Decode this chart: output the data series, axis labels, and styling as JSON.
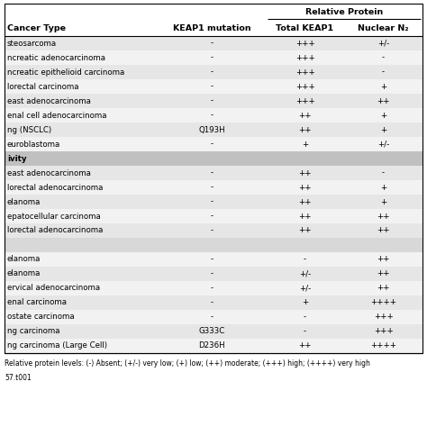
{
  "title_row1": "Relative Protein",
  "col_headers": [
    "Cancer Type",
    "KEAP1 mutation",
    "Total KEAP1",
    "Nuclear N₂"
  ],
  "rows": [
    {
      "label": "steosarcoma",
      "is_section": false,
      "is_blank": false,
      "keap1_mut": "-",
      "total_keap1": "+++",
      "nuclear_n": "+/-"
    },
    {
      "label": "ncreatic adenocarcinoma",
      "is_section": false,
      "is_blank": false,
      "keap1_mut": "-",
      "total_keap1": "+++",
      "nuclear_n": "-"
    },
    {
      "label": "ncreatic epithelioid carcinoma",
      "is_section": false,
      "is_blank": false,
      "keap1_mut": "-",
      "total_keap1": "+++",
      "nuclear_n": "-"
    },
    {
      "label": "lorectal carcinoma",
      "is_section": false,
      "is_blank": false,
      "keap1_mut": "-",
      "total_keap1": "+++",
      "nuclear_n": "+"
    },
    {
      "label": "east adenocarcinoma",
      "is_section": false,
      "is_blank": false,
      "keap1_mut": "-",
      "total_keap1": "+++",
      "nuclear_n": "++"
    },
    {
      "label": "enal cell adenocarcinoma",
      "is_section": false,
      "is_blank": false,
      "keap1_mut": "-",
      "total_keap1": "++",
      "nuclear_n": "+"
    },
    {
      "label": "ng (NSCLC)",
      "is_section": false,
      "is_blank": false,
      "keap1_mut": "Q193H",
      "total_keap1": "++",
      "nuclear_n": "+"
    },
    {
      "label": "euroblastoma",
      "is_section": false,
      "is_blank": false,
      "keap1_mut": "-",
      "total_keap1": "+",
      "nuclear_n": "+/-"
    },
    {
      "label": "ivity",
      "is_section": true,
      "is_blank": false,
      "keap1_mut": "",
      "total_keap1": "",
      "nuclear_n": ""
    },
    {
      "label": "east adenocarcinoma",
      "is_section": false,
      "is_blank": false,
      "keap1_mut": "-",
      "total_keap1": "++",
      "nuclear_n": "-"
    },
    {
      "label": "lorectal adenocarcinoma",
      "is_section": false,
      "is_blank": false,
      "keap1_mut": "-",
      "total_keap1": "++",
      "nuclear_n": "+"
    },
    {
      "label": "elanoma",
      "is_section": false,
      "is_blank": false,
      "keap1_mut": "-",
      "total_keap1": "++",
      "nuclear_n": "+"
    },
    {
      "label": "epatocellular carcinoma",
      "is_section": false,
      "is_blank": false,
      "keap1_mut": "-",
      "total_keap1": "++",
      "nuclear_n": "++"
    },
    {
      "label": "lorectal adenocarcinoma",
      "is_section": false,
      "is_blank": false,
      "keap1_mut": "-",
      "total_keap1": "++",
      "nuclear_n": "++"
    },
    {
      "label": "",
      "is_section": false,
      "is_blank": true,
      "keap1_mut": "",
      "total_keap1": "",
      "nuclear_n": ""
    },
    {
      "label": "elanoma",
      "is_section": false,
      "is_blank": false,
      "keap1_mut": "-",
      "total_keap1": "-",
      "nuclear_n": "++"
    },
    {
      "label": "elanoma",
      "is_section": false,
      "is_blank": false,
      "keap1_mut": "-",
      "total_keap1": "+/-",
      "nuclear_n": "++"
    },
    {
      "label": "ervical adenocarcinoma",
      "is_section": false,
      "is_blank": false,
      "keap1_mut": "-",
      "total_keap1": "+/-",
      "nuclear_n": "++"
    },
    {
      "label": "enal carcinoma",
      "is_section": false,
      "is_blank": false,
      "keap1_mut": "-",
      "total_keap1": "+",
      "nuclear_n": "++++"
    },
    {
      "label": "ostate carcinoma",
      "is_section": false,
      "is_blank": false,
      "keap1_mut": "-",
      "total_keap1": "-",
      "nuclear_n": "+++"
    },
    {
      "label": "ng carcinoma",
      "is_section": false,
      "is_blank": false,
      "keap1_mut": "G333C",
      "total_keap1": "-",
      "nuclear_n": "+++"
    },
    {
      "label": "ng carcinoma (Large Cell)",
      "is_section": false,
      "is_blank": false,
      "keap1_mut": "D236H",
      "total_keap1": "++",
      "nuclear_n": "++++"
    }
  ],
  "footnote": "Relative protein levels: (-) Absent; (+/-) very low; (+) low; (++) moderate; (+++) high; (++++) very high",
  "doi": "57.t001",
  "bg_color_even": "#e6e6e6",
  "bg_color_odd": "#f2f2f2",
  "bg_section": "#c0c0c0",
  "bg_blank": "#d8d8d8",
  "font_size": 6.2,
  "header_font_size": 6.8
}
